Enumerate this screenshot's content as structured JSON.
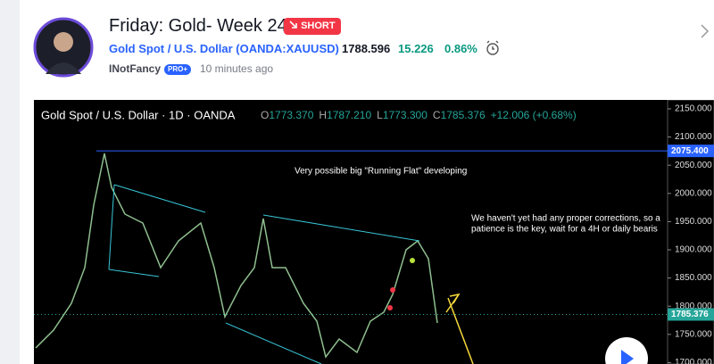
{
  "header": {
    "title": "Friday: Gold- Week 24",
    "badge": "SHORT",
    "symbol": "Gold Spot / U.S. Dollar (OANDA:XAUUSD)",
    "price": "1788.596",
    "change": "15.226",
    "change_pct": "0.86%",
    "author": "INotFancy",
    "author_badge": "PRO+",
    "time": "10 minutes ago"
  },
  "chart": {
    "legend": {
      "title": "Gold Spot / U.S. Dollar · 1D · OANDA",
      "ohlc": [
        {
          "key": "O",
          "value": "1773.370"
        },
        {
          "key": "H",
          "value": "1787.210"
        },
        {
          "key": "L",
          "value": "1773.300"
        },
        {
          "key": "C",
          "value": "1785.376"
        }
      ],
      "change": "+12.006 (+0.68%)"
    },
    "annotations": [
      "Very possible big \"Running Flat\" developing",
      "We haven't yet had any proper corrections, so a",
      "patience is the key, wait for a 4H or daily bearis"
    ],
    "price_axis": {
      "ylim": [
        1697.5,
        2165.8
      ],
      "ticks": [
        {
          "value": 2150,
          "label": "2150.000"
        },
        {
          "value": 2100,
          "label": "2100.000"
        },
        {
          "value": 2050,
          "label": "2050.000"
        },
        {
          "value": 2000,
          "label": "2000.000"
        },
        {
          "value": 1950,
          "label": "1950.000"
        },
        {
          "value": 1900,
          "label": "1900.000"
        },
        {
          "value": 1850,
          "label": "1850.000"
        },
        {
          "value": 1800,
          "label": "1800.000"
        },
        {
          "value": 1750,
          "label": "1750.000"
        },
        {
          "value": 1700,
          "label": "1700.000"
        }
      ],
      "levels": [
        {
          "value": 2075.4,
          "label": "2075.400",
          "color": "#2962ff"
        },
        {
          "value": 1785.376,
          "label": "1785.376",
          "color": "#26a69a"
        }
      ]
    }
  }
}
